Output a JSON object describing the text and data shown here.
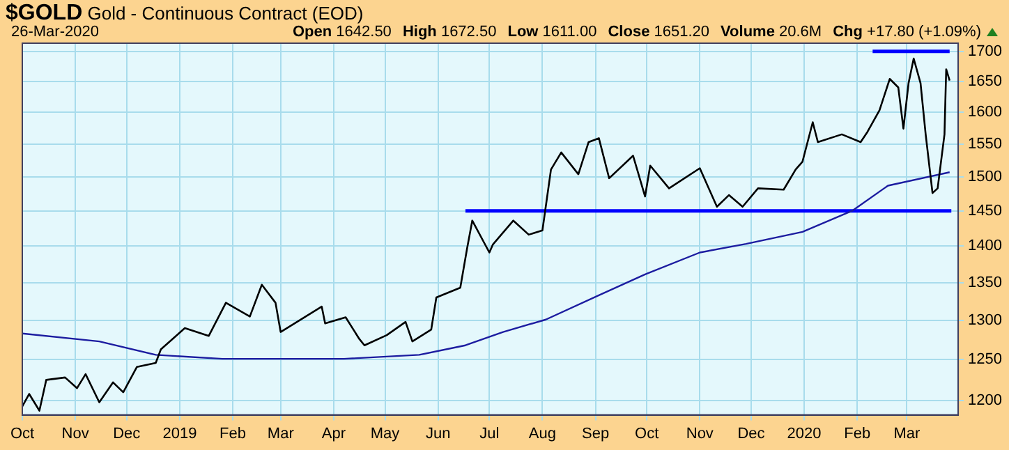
{
  "chart_data": {
    "type": "line",
    "title": "$GOLD Gold - Continuous Contract (EOD)",
    "annotations": [
      "26-Mar-2020",
      "Open 1642.50",
      "High 1672.50",
      "Low 1611.00",
      "Close 1651.20",
      "Volume 20.6M",
      "Chg +17.80 (+1.09%)"
    ],
    "log": "y",
    "grid": true,
    "legend": false,
    "marker": "none",
    "line_style": "solid",
    "xlim": [
      "2018-10-01",
      "2020-03-31"
    ],
    "xticks": [
      {
        "value": "2018-10-01",
        "label": "Oct"
      },
      {
        "value": "2018-11-01",
        "label": "Nov"
      },
      {
        "value": "2018-12-01",
        "label": "Dec"
      },
      {
        "value": "2019-01-01",
        "label": "2019"
      },
      {
        "value": "2019-02-01",
        "label": "Feb"
      },
      {
        "value": "2019-03-01",
        "label": "Mar"
      },
      {
        "value": "2019-04-01",
        "label": "Apr"
      },
      {
        "value": "2019-05-01",
        "label": "May"
      },
      {
        "value": "2019-06-01",
        "label": "Jun"
      },
      {
        "value": "2019-07-01",
        "label": "Jul"
      },
      {
        "value": "2019-08-01",
        "label": "Aug"
      },
      {
        "value": "2019-09-01",
        "label": "Sep"
      },
      {
        "value": "2019-10-01",
        "label": "Oct"
      },
      {
        "value": "2019-11-01",
        "label": "Nov"
      },
      {
        "value": "2019-12-01",
        "label": "Dec"
      },
      {
        "value": "2020-01-01",
        "label": "2020"
      },
      {
        "value": "2020-02-01",
        "label": "Feb"
      },
      {
        "value": "2020-03-01",
        "label": "Mar"
      }
    ],
    "ylim": [
      1183,
      1714
    ],
    "yticks": [
      1200,
      1250,
      1300,
      1350,
      1400,
      1450,
      1500,
      1550,
      1600,
      1650,
      1700
    ],
    "series": [
      {
        "color": "#000000",
        "x": [
          "2018-10-01",
          "2018-10-05",
          "2018-10-11",
          "2018-10-15",
          "2018-10-26",
          "2018-11-02",
          "2018-11-07",
          "2018-11-15",
          "2018-11-23",
          "2018-11-29",
          "2018-12-07",
          "2018-12-18",
          "2018-12-21",
          "2019-01-04",
          "2019-01-18",
          "2019-01-28",
          "2019-02-11",
          "2019-02-18",
          "2019-02-26",
          "2019-03-01",
          "2019-03-25",
          "2019-03-27",
          "2019-04-08",
          "2019-04-16",
          "2019-04-19",
          "2019-05-02",
          "2019-05-13",
          "2019-05-17",
          "2019-05-28",
          "2019-05-31",
          "2019-06-14",
          "2019-06-18",
          "2019-06-21",
          "2019-07-01",
          "2019-07-03",
          "2019-07-15",
          "2019-07-24",
          "2019-08-01",
          "2019-08-06",
          "2019-08-12",
          "2019-08-22",
          "2019-08-28",
          "2019-09-03",
          "2019-09-09",
          "2019-09-23",
          "2019-09-30",
          "2019-10-03",
          "2019-10-14",
          "2019-11-01",
          "2019-11-11",
          "2019-11-18",
          "2019-11-26",
          "2019-12-05",
          "2019-12-20",
          "2019-12-27",
          "2019-12-31",
          "2020-01-06",
          "2020-01-09",
          "2020-01-23",
          "2020-02-03",
          "2020-02-07",
          "2020-02-14",
          "2020-02-20",
          "2020-02-25",
          "2020-02-28",
          "2020-03-02",
          "2020-03-05",
          "2020-03-09",
          "2020-03-12",
          "2020-03-16",
          "2020-03-19",
          "2020-03-23",
          "2020-03-24",
          "2020-03-26"
        ],
        "values": [
          1193,
          1208,
          1188,
          1225,
          1228,
          1215,
          1232,
          1198,
          1222,
          1210,
          1241,
          1246,
          1263,
          1290,
          1280,
          1323,
          1305,
          1347,
          1323,
          1285,
          1318,
          1296,
          1304,
          1276,
          1268,
          1281,
          1298,
          1273,
          1288,
          1330,
          1343,
          1397,
          1436,
          1391,
          1402,
          1436,
          1416,
          1422,
          1511,
          1537,
          1504,
          1553,
          1559,
          1498,
          1532,
          1471,
          1517,
          1483,
          1513,
          1456,
          1473,
          1456,
          1483,
          1481,
          1511,
          1523,
          1584,
          1553,
          1565,
          1553,
          1569,
          1603,
          1654,
          1640,
          1574,
          1647,
          1688,
          1647,
          1565,
          1476,
          1483,
          1565,
          1670,
          1651.2
        ]
      },
      {
        "color": "#1c1ca0",
        "x": [
          "2018-10-01",
          "2018-11-15",
          "2018-12-18",
          "2019-01-26",
          "2019-04-07",
          "2019-05-21",
          "2019-06-17",
          "2019-07-09",
          "2019-08-03",
          "2019-09-03",
          "2019-09-30",
          "2019-11-01",
          "2019-11-28",
          "2019-12-31",
          "2020-01-29",
          "2020-02-19",
          "2020-03-26"
        ],
        "values": [
          1283,
          1273,
          1256,
          1251,
          1251,
          1256,
          1268,
          1285,
          1301,
          1333,
          1361,
          1391,
          1403,
          1420,
          1450,
          1487,
          1507
        ]
      },
      {
        "color": "#0000ff",
        "x": [
          "2019-06-17",
          "2020-03-27"
        ],
        "values": [
          1450,
          1450
        ]
      },
      {
        "color": "#0000ff",
        "x": [
          "2020-02-10",
          "2020-03-26"
        ],
        "values": [
          1700,
          1700
        ]
      }
    ]
  }
}
